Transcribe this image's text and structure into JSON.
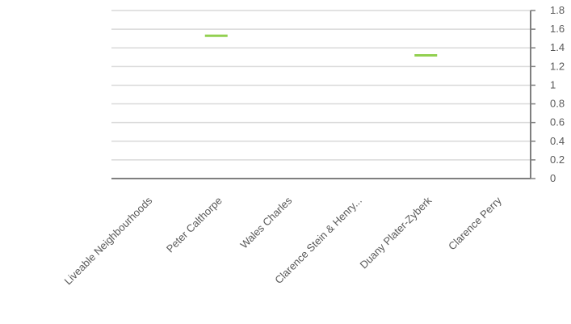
{
  "chart_data": {
    "type": "line",
    "categories": [
      "Liveable Neighbourhoods",
      "Peter Calthorpe",
      "Wales Charles",
      "Clarence Stein & Henry...",
      "Duany Plater-Zyberk",
      "Clarence Perry"
    ],
    "series": [
      {
        "values": [
          null,
          1.53,
          null,
          null,
          1.32,
          null
        ],
        "color": "#92d050"
      }
    ],
    "y_ticks": [
      "0",
      "0.2",
      "0.4",
      "0.6",
      "0.8",
      "1",
      "1.2",
      "1.4",
      "1.6",
      "1.8"
    ],
    "ylim": [
      0,
      1.8
    ],
    "y_axis_side": "right",
    "grid": true,
    "marker": "dash",
    "legend": "none",
    "title": "",
    "xlabel": "",
    "ylabel": ""
  }
}
